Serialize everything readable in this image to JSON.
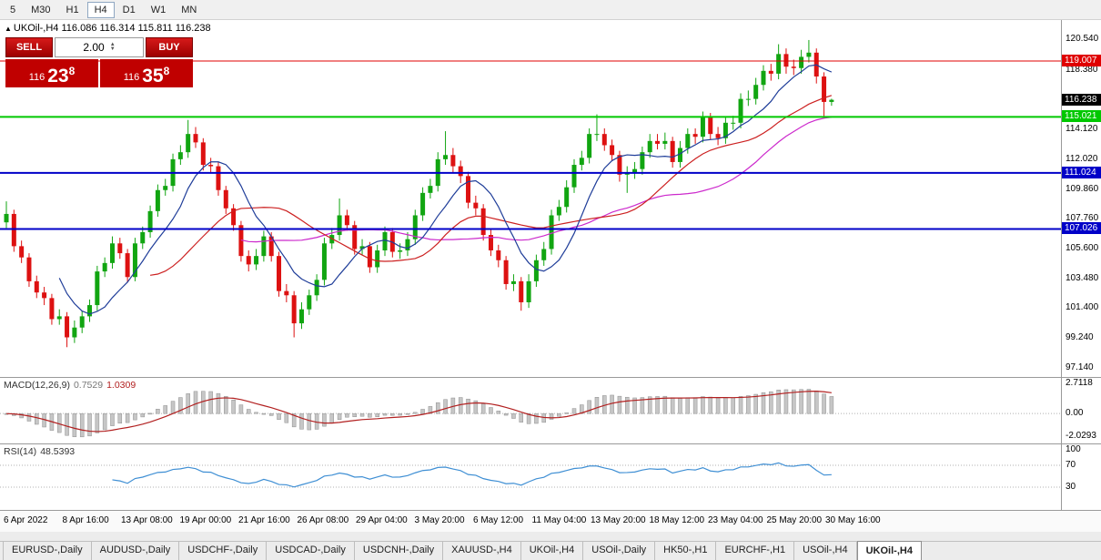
{
  "icons": {
    "marker": "▲",
    "spin_up": "▲",
    "spin_down": "▼"
  },
  "toolbar": {
    "timeframes": [
      {
        "label": "5",
        "active": false
      },
      {
        "label": "M30",
        "active": false
      },
      {
        "label": "H1",
        "active": false
      },
      {
        "label": "H4",
        "active": true
      },
      {
        "label": "D1",
        "active": false
      },
      {
        "label": "W1",
        "active": false
      },
      {
        "label": "MN",
        "active": false
      }
    ]
  },
  "chart": {
    "symbol_title": "UKOil-,H4",
    "ohlc_title": "116.086 116.314 115.811 116.238",
    "axis_labels": [
      "120.540",
      "118.380",
      "116.220",
      "114.120",
      "112.020",
      "109.860",
      "107.760",
      "105.600",
      "103.480",
      "101.400",
      "99.240",
      "97.140"
    ],
    "levels": [
      {
        "value": 119.007,
        "label": "119.007",
        "color": "#e00000",
        "width": 1
      },
      {
        "value": 115.021,
        "label": "115.021",
        "color": "#00c800",
        "width": 2
      },
      {
        "value": 111.024,
        "label": "111.024",
        "color": "#0000c8",
        "width": 2
      },
      {
        "value": 107.026,
        "label": "107.026",
        "color": "#0000c8",
        "width": 2
      }
    ],
    "current_price": {
      "value": 116.238,
      "label": "116.238",
      "color": "#000000"
    },
    "colors": {
      "up": "#11a511",
      "down": "#dd1111",
      "ma_fast": "#1f3d99",
      "ma_mid": "#cc2020",
      "ma_slow": "#cc29cc"
    }
  },
  "trade": {
    "sell_label": "SELL",
    "buy_label": "BUY",
    "volume": "2.00",
    "bid_prefix": "116",
    "bid_main": "23",
    "bid_sup": "8",
    "ask_prefix": "116",
    "ask_main": "35",
    "ask_sup": "8"
  },
  "macd": {
    "name": "MACD(12,26,9)",
    "value1": "0.7529",
    "value2": "1.0309",
    "axis": [
      {
        "label": "2.7118",
        "value": 2.7118
      },
      {
        "label": "0.00",
        "value": 0
      },
      {
        "label": "-2.0293",
        "value": -2.0293
      }
    ],
    "range": [
      -2.0293,
      2.7118
    ],
    "params": [
      12,
      26,
      9
    ]
  },
  "rsi": {
    "name": "RSI(14)",
    "value": "48.5393",
    "axis": [
      {
        "label": "100",
        "value": 100
      },
      {
        "label": "70",
        "value": 70
      },
      {
        "label": "30",
        "value": 30
      }
    ],
    "levels": [
      70,
      30
    ],
    "period": 14,
    "color": "#3f8fd4"
  },
  "chart_data": {
    "type": "candlestick",
    "title": "UKOil-,H4",
    "y_range": [
      96.8,
      121.6
    ],
    "x_labels": [
      "6 Apr 2022",
      "8 Apr 16:00",
      "13 Apr 08:00",
      "19 Apr 00:00",
      "21 Apr 16:00",
      "26 Apr 08:00",
      "29 Apr 04:00",
      "3 May 20:00",
      "6 May 12:00",
      "11 May 04:00",
      "13 May 20:00",
      "18 May 12:00",
      "23 May 04:00",
      "25 May 20:00",
      "30 May 16:00"
    ],
    "ohlc": [
      [
        107.5,
        109.0,
        107.1,
        108.1
      ],
      [
        108.1,
        108.4,
        105.4,
        105.8
      ],
      [
        105.8,
        106.2,
        104.6,
        105.0
      ],
      [
        105.0,
        105.3,
        102.9,
        103.3
      ],
      [
        103.3,
        103.7,
        102.1,
        102.5
      ],
      [
        102.5,
        102.9,
        101.6,
        102.1
      ],
      [
        102.1,
        102.4,
        100.2,
        100.6
      ],
      [
        100.6,
        101.3,
        100.2,
        100.8
      ],
      [
        100.8,
        101.1,
        98.6,
        99.3
      ],
      [
        99.3,
        100.5,
        98.9,
        100.0
      ],
      [
        100.0,
        101.2,
        99.6,
        100.8
      ],
      [
        100.8,
        102.0,
        100.4,
        101.6
      ],
      [
        101.6,
        104.4,
        101.2,
        104.0
      ],
      [
        104.0,
        105.0,
        103.6,
        104.6
      ],
      [
        104.6,
        106.5,
        104.2,
        106.0
      ],
      [
        106.0,
        106.4,
        104.9,
        105.3
      ],
      [
        105.3,
        105.6,
        103.2,
        103.6
      ],
      [
        103.6,
        106.4,
        103.3,
        106.0
      ],
      [
        106.0,
        107.2,
        105.6,
        106.8
      ],
      [
        106.8,
        108.7,
        106.4,
        108.3
      ],
      [
        108.3,
        110.2,
        107.9,
        109.8
      ],
      [
        109.8,
        110.6,
        109.4,
        110.1
      ],
      [
        110.1,
        112.4,
        109.7,
        112.0
      ],
      [
        112.0,
        113.0,
        111.6,
        112.5
      ],
      [
        112.5,
        114.8,
        112.1,
        113.8
      ],
      [
        113.8,
        114.3,
        112.8,
        113.2
      ],
      [
        113.2,
        113.5,
        111.2,
        111.6
      ],
      [
        111.6,
        112.1,
        111.0,
        111.5
      ],
      [
        111.5,
        111.8,
        109.4,
        109.8
      ],
      [
        109.8,
        110.1,
        108.1,
        108.5
      ],
      [
        108.5,
        108.8,
        106.9,
        107.3
      ],
      [
        107.3,
        107.6,
        104.7,
        105.1
      ],
      [
        105.1,
        105.5,
        104.0,
        104.5
      ],
      [
        104.5,
        105.6,
        104.1,
        105.1
      ],
      [
        105.1,
        106.9,
        104.7,
        106.5
      ],
      [
        106.5,
        106.8,
        104.7,
        105.1
      ],
      [
        105.1,
        105.4,
        102.2,
        102.6
      ],
      [
        102.6,
        103.1,
        101.8,
        102.3
      ],
      [
        102.3,
        102.6,
        99.3,
        100.3
      ],
      [
        100.3,
        101.8,
        99.9,
        101.3
      ],
      [
        101.3,
        102.7,
        100.9,
        102.3
      ],
      [
        102.3,
        103.8,
        101.9,
        103.4
      ],
      [
        103.4,
        106.4,
        103.0,
        106.0
      ],
      [
        106.0,
        107.1,
        105.6,
        106.6
      ],
      [
        106.6,
        109.2,
        106.2,
        108.0
      ],
      [
        108.0,
        108.4,
        106.9,
        107.3
      ],
      [
        107.3,
        107.6,
        105.2,
        105.6
      ],
      [
        105.6,
        106.3,
        105.2,
        105.8
      ],
      [
        105.8,
        106.1,
        103.9,
        104.3
      ],
      [
        104.3,
        105.9,
        103.9,
        105.5
      ],
      [
        105.5,
        107.2,
        105.1,
        106.8
      ],
      [
        106.8,
        107.1,
        105.0,
        105.4
      ],
      [
        105.4,
        106.0,
        104.9,
        105.5
      ],
      [
        105.5,
        106.8,
        105.1,
        106.3
      ],
      [
        106.3,
        108.4,
        105.9,
        108.0
      ],
      [
        108.0,
        110.0,
        107.6,
        109.6
      ],
      [
        109.6,
        110.6,
        109.2,
        110.1
      ],
      [
        110.1,
        112.5,
        109.7,
        112.0
      ],
      [
        112.0,
        114.0,
        111.6,
        112.3
      ],
      [
        112.3,
        112.8,
        111.0,
        111.5
      ],
      [
        111.5,
        111.9,
        110.3,
        110.8
      ],
      [
        110.8,
        111.1,
        108.5,
        108.9
      ],
      [
        108.9,
        109.4,
        108.0,
        108.5
      ],
      [
        108.5,
        108.8,
        106.2,
        106.6
      ],
      [
        106.6,
        107.0,
        105.1,
        105.5
      ],
      [
        105.5,
        105.9,
        104.3,
        104.8
      ],
      [
        104.8,
        105.1,
        102.7,
        103.1
      ],
      [
        103.1,
        103.8,
        102.6,
        103.3
      ],
      [
        103.3,
        103.6,
        101.2,
        101.8
      ],
      [
        101.8,
        103.8,
        101.4,
        103.3
      ],
      [
        103.3,
        105.2,
        102.9,
        104.8
      ],
      [
        104.8,
        106.1,
        104.4,
        105.6
      ],
      [
        105.6,
        108.4,
        105.2,
        108.0
      ],
      [
        108.0,
        109.1,
        107.6,
        108.6
      ],
      [
        108.6,
        110.5,
        108.2,
        110.0
      ],
      [
        110.0,
        112.0,
        109.6,
        111.6
      ],
      [
        111.6,
        112.6,
        111.2,
        112.1
      ],
      [
        112.1,
        114.2,
        111.7,
        113.8
      ],
      [
        113.8,
        115.2,
        113.3,
        113.8
      ],
      [
        113.8,
        114.2,
        112.6,
        113.0
      ],
      [
        113.0,
        113.4,
        111.9,
        112.3
      ],
      [
        112.3,
        112.6,
        110.4,
        110.9
      ],
      [
        110.9,
        111.5,
        109.6,
        111.0
      ],
      [
        111.0,
        111.8,
        110.6,
        111.3
      ],
      [
        111.3,
        112.9,
        110.9,
        112.5
      ],
      [
        112.5,
        113.8,
        112.1,
        113.3
      ],
      [
        113.3,
        113.8,
        112.7,
        113.1
      ],
      [
        113.1,
        113.9,
        112.7,
        113.3
      ],
      [
        113.3,
        113.6,
        111.4,
        111.8
      ],
      [
        111.8,
        113.3,
        111.4,
        112.8
      ],
      [
        112.8,
        114.2,
        112.4,
        113.8
      ],
      [
        113.8,
        114.2,
        113.1,
        113.6
      ],
      [
        113.6,
        115.4,
        113.2,
        115.0
      ],
      [
        115.0,
        115.3,
        113.4,
        113.8
      ],
      [
        113.8,
        114.3,
        113.0,
        113.5
      ],
      [
        113.5,
        115.0,
        113.1,
        114.6
      ],
      [
        114.6,
        115.1,
        114.1,
        114.6
      ],
      [
        114.6,
        116.7,
        114.2,
        116.3
      ],
      [
        116.3,
        116.9,
        115.8,
        116.3
      ],
      [
        116.3,
        117.8,
        115.9,
        117.3
      ],
      [
        117.3,
        118.7,
        116.9,
        118.3
      ],
      [
        118.3,
        118.8,
        117.6,
        118.1
      ],
      [
        118.1,
        120.2,
        117.7,
        119.5
      ],
      [
        119.5,
        119.9,
        118.1,
        118.6
      ],
      [
        118.6,
        119.1,
        118.0,
        118.5
      ],
      [
        118.5,
        119.8,
        118.1,
        119.3
      ],
      [
        119.3,
        120.5,
        118.9,
        119.6
      ],
      [
        119.6,
        119.9,
        117.4,
        117.9
      ],
      [
        117.9,
        118.2,
        114.9,
        116.086
      ],
      [
        116.086,
        116.314,
        115.811,
        116.238
      ]
    ]
  },
  "tabs": [
    {
      "label": "EURUSD-,Daily",
      "active": false
    },
    {
      "label": "AUDUSD-,Daily",
      "active": false
    },
    {
      "label": "USDCHF-,Daily",
      "active": false
    },
    {
      "label": "USDCAD-,Daily",
      "active": false
    },
    {
      "label": "USDCNH-,Daily",
      "active": false
    },
    {
      "label": "XAUUSD-,H4",
      "active": false
    },
    {
      "label": "UKOil-,H4",
      "active": false
    },
    {
      "label": "USOil-,Daily",
      "active": false
    },
    {
      "label": "HK50-,H1",
      "active": false
    },
    {
      "label": "EURCHF-,H1",
      "active": false
    },
    {
      "label": "USOil-,H4",
      "active": false
    },
    {
      "label": "UKOil-,H4",
      "active": true
    }
  ]
}
